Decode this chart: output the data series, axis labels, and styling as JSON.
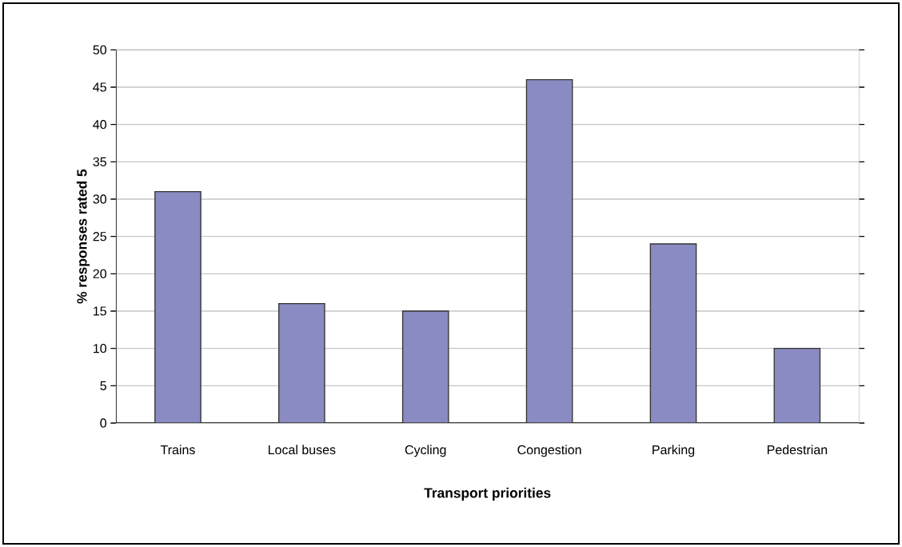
{
  "chart_data": {
    "type": "bar",
    "xlabel": "Transport priorities",
    "ylabel": "% responses rated 5",
    "categories": [
      "Trains",
      "Local buses",
      "Cycling",
      "Congestion",
      "Parking",
      "Pedestrian"
    ],
    "values": [
      31,
      16,
      15,
      46,
      24,
      10
    ],
    "color": "#8b8bc3",
    "ylim": [
      0,
      50
    ],
    "yticks": [
      0,
      5,
      10,
      15,
      20,
      25,
      30,
      35,
      40,
      45,
      50
    ],
    "grid": "y"
  }
}
